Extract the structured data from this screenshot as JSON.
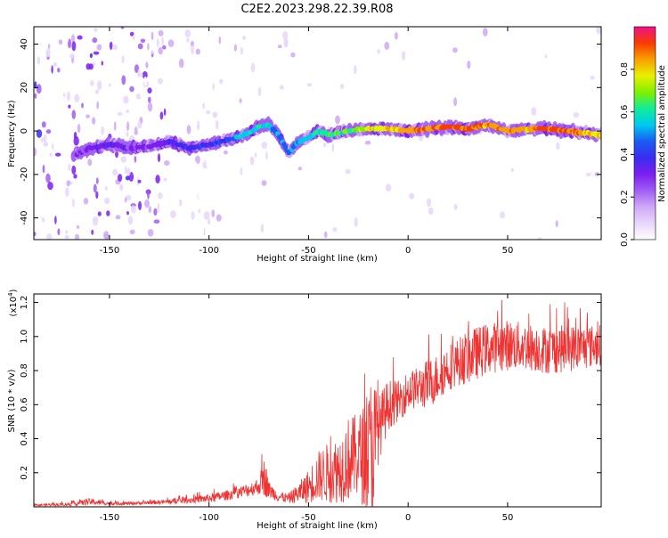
{
  "title": "C2E2.2023.298.22.39.R08",
  "colors": {
    "snr_line": "#ee3333",
    "frame": "#000000",
    "spectrogram_colormap": [
      "#ffffff",
      "#e8d6fb",
      "#cfa8f7",
      "#a25df3",
      "#7a1ff0",
      "#3a2cf0",
      "#1a5cf2",
      "#00c8f0",
      "#10ec9a",
      "#7ef000",
      "#e8f000",
      "#f8a000",
      "#f83c00",
      "#f0108a"
    ]
  },
  "chart_data": [
    {
      "type": "heatmap",
      "name": "spectrogram",
      "xlabel": "Height of straight line (km)",
      "ylabel": "Frequency (Hz)",
      "xlim": [
        -188,
        97
      ],
      "ylim": [
        -50,
        48
      ],
      "xticks": [
        -150,
        -100,
        -50,
        0,
        50
      ],
      "xtick_labels": [
        "-150",
        "-100",
        "-50",
        "0",
        "50"
      ],
      "yticks": [
        -40,
        -20,
        0,
        20,
        40
      ],
      "ytick_labels": [
        "-40",
        "-20",
        "0",
        "20",
        "40"
      ],
      "grid": false,
      "ridge": {
        "x": [
          -168,
          -160,
          -150,
          -140,
          -130,
          -120,
          -110,
          -100,
          -90,
          -80,
          -75,
          -70,
          -65,
          -60,
          -55,
          -50,
          -45,
          -40,
          -30,
          -20,
          -10,
          0,
          10,
          20,
          30,
          40,
          50,
          60,
          70,
          80,
          90,
          97
        ],
        "y": [
          -11,
          -8,
          -6,
          -8,
          -7,
          -5,
          -8,
          -6,
          -4,
          -1,
          2,
          3,
          -2,
          -10,
          -5,
          -3,
          0,
          -2,
          0,
          1,
          1,
          0,
          1,
          2,
          1,
          3,
          0,
          1,
          1,
          0,
          -1,
          -2
        ],
        "amplitude": [
          0.3,
          0.32,
          0.35,
          0.3,
          0.32,
          0.35,
          0.38,
          0.4,
          0.45,
          0.55,
          0.6,
          0.55,
          0.5,
          0.45,
          0.5,
          0.55,
          0.6,
          0.62,
          0.65,
          0.72,
          0.78,
          0.82,
          0.85,
          0.88,
          0.86,
          0.84,
          0.85,
          0.82,
          0.88,
          0.86,
          0.8,
          0.75
        ]
      },
      "colorbar": {
        "label": "Normalized spectral amplitude",
        "range": [
          0,
          1
        ],
        "ticks": [
          0.0,
          0.2,
          0.4,
          0.6,
          0.8
        ],
        "tick_labels": [
          "0.0",
          "0.2",
          "0.4",
          "0.6",
          "0.8"
        ]
      }
    },
    {
      "type": "line",
      "name": "snr",
      "xlabel": "Height of straight line (km)",
      "ylabel": "SNR (10 * v/v)",
      "multiplier": "(x10",
      "multiplier_exp": "4",
      "multiplier_close": ")",
      "xlim": [
        -188,
        97
      ],
      "ylim": [
        0,
        1.25
      ],
      "xticks": [
        -150,
        -100,
        -50,
        0,
        50
      ],
      "xtick_labels": [
        "-150",
        "-100",
        "-50",
        "0",
        "50"
      ],
      "yticks": [
        0.2,
        0.4,
        0.6,
        0.8,
        1.0,
        1.2
      ],
      "ytick_labels": [
        "0.2",
        "0.4",
        "0.6",
        "0.8",
        "1.0",
        "1.2"
      ],
      "grid": false,
      "envelope": {
        "x": [
          -188,
          -170,
          -160,
          -150,
          -140,
          -130,
          -120,
          -110,
          -100,
          -90,
          -80,
          -75,
          -72,
          -70,
          -65,
          -60,
          -55,
          -50,
          -45,
          -40,
          -35,
          -30,
          -25,
          -20,
          -18,
          -15,
          -10,
          -5,
          0,
          5,
          10,
          15,
          20,
          25,
          30,
          40,
          50,
          60,
          70,
          80,
          90,
          97
        ],
        "mean": [
          0.01,
          0.015,
          0.03,
          0.02,
          0.02,
          0.025,
          0.03,
          0.04,
          0.05,
          0.07,
          0.1,
          0.12,
          0.18,
          0.1,
          0.06,
          0.05,
          0.08,
          0.12,
          0.18,
          0.2,
          0.22,
          0.28,
          0.3,
          0.3,
          0.35,
          0.45,
          0.6,
          0.62,
          0.68,
          0.7,
          0.72,
          0.76,
          0.82,
          0.85,
          0.88,
          0.93,
          0.95,
          0.94,
          0.92,
          0.93,
          0.94,
          0.95
        ],
        "spread": [
          0.005,
          0.01,
          0.02,
          0.01,
          0.01,
          0.01,
          0.015,
          0.02,
          0.025,
          0.03,
          0.04,
          0.05,
          0.12,
          0.05,
          0.03,
          0.03,
          0.06,
          0.1,
          0.15,
          0.18,
          0.2,
          0.25,
          0.25,
          0.35,
          0.5,
          0.2,
          0.15,
          0.12,
          0.12,
          0.12,
          0.15,
          0.14,
          0.14,
          0.14,
          0.16,
          0.15,
          0.15,
          0.14,
          0.14,
          0.14,
          0.13,
          0.12
        ]
      }
    }
  ]
}
